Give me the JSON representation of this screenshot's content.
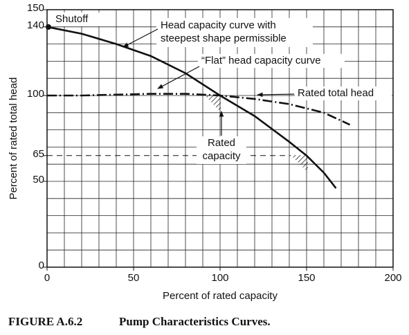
{
  "chart_data": {
    "type": "line",
    "xlabel": "Percent of rated capacity",
    "ylabel": "Percent of rated total head",
    "xlim": [
      0,
      200
    ],
    "ylim": [
      0,
      150
    ],
    "xticks": [
      0,
      50,
      100,
      150,
      200
    ],
    "yticks": [
      0,
      50,
      65,
      100,
      140,
      150
    ],
    "xgrid": [
      0,
      10,
      20,
      30,
      40,
      50,
      60,
      70,
      80,
      90,
      100,
      110,
      120,
      130,
      140,
      150,
      160,
      170,
      180,
      190,
      200
    ],
    "ygrid": [
      0,
      10,
      20,
      30,
      40,
      50,
      60,
      70,
      80,
      90,
      100,
      110,
      120,
      130,
      140,
      150
    ],
    "series": [
      {
        "color": "#111111",
        "dash": "none",
        "x": [
          0,
          20,
          40,
          60,
          80,
          100,
          120,
          140,
          150,
          160,
          167
        ],
        "values": [
          140,
          136,
          130,
          123,
          113,
          100,
          88,
          73,
          65,
          55,
          46
        ]
      },
      {
        "color": "#111111",
        "dash": "14 4 2 4",
        "x": [
          0,
          20,
          40,
          60,
          80,
          100,
          120,
          140,
          160,
          175
        ],
        "values": [
          100,
          100,
          100.5,
          101,
          101,
          100,
          98,
          95,
          90,
          83
        ]
      }
    ],
    "annotations": {
      "shutoff": "Shutoff",
      "steep": [
        "Head capacity curve with",
        "steepest shape permissible"
      ],
      "flat": "“Flat” head capacity curve",
      "rated_head": "Rated total head",
      "rated_capacity": [
        "Rated",
        "capacity"
      ]
    },
    "caption": {
      "figure": "FIGURE A.6.2",
      "title": "Pump Characteristics Curves."
    }
  }
}
